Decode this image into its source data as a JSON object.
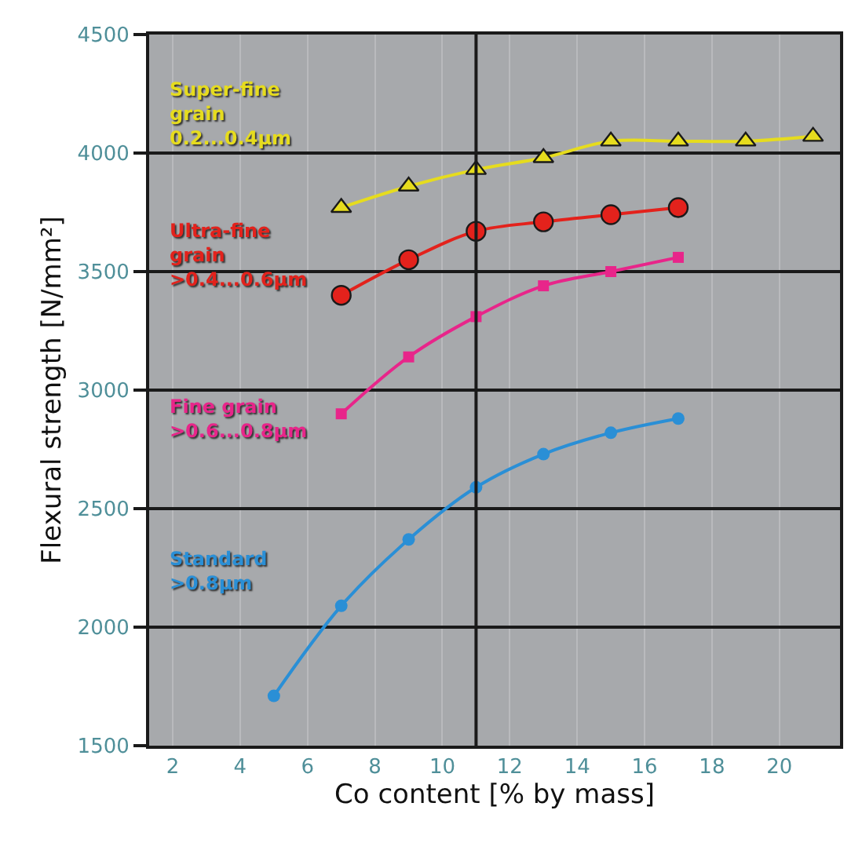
{
  "chart_data": {
    "type": "line",
    "xlabel": "Co content [% by mass]",
    "ylabel": "Flexural strength [N/mm²]",
    "xlim": [
      1.3,
      21.8
    ],
    "xticks": [
      2,
      4,
      6,
      8,
      10,
      12,
      14,
      16,
      18,
      20
    ],
    "ylim": [
      1500,
      4500
    ],
    "yticks": [
      1500,
      2000,
      2500,
      3000,
      3500,
      4000,
      4500
    ],
    "grid": true,
    "ref_lines": [
      {
        "axis": "x",
        "value": 11,
        "color": "#1a1a1a"
      }
    ],
    "series": [
      {
        "name": "Super-fine\ngrain\n0.2...0.4µm",
        "color": "#e6dc1e",
        "marker": "triangle",
        "x": [
          7,
          9,
          11,
          13,
          15,
          17,
          19,
          21
        ],
        "values": [
          3770,
          3860,
          3930,
          3980,
          4050,
          4050,
          4050,
          4070
        ]
      },
      {
        "name": "Ultra-fine\ngrain\n>0.4...0.6µm",
        "color": "#e3221c",
        "marker": "circle",
        "x": [
          7,
          9,
          11,
          13,
          15,
          17
        ],
        "values": [
          3400,
          3550,
          3670,
          3710,
          3740,
          3770
        ]
      },
      {
        "name": "Fine grain\n>0.6...0.8µm",
        "color": "#e8258a",
        "marker": "square",
        "x": [
          7,
          9,
          11,
          13,
          15,
          17
        ],
        "values": [
          2900,
          3140,
          3310,
          3440,
          3500,
          3560
        ]
      },
      {
        "name": "Standard\n>0.8µm",
        "color": "#2a8fd6",
        "marker": "circle",
        "x": [
          5,
          7,
          9,
          11,
          13,
          15,
          17
        ],
        "values": [
          1710,
          2090,
          2370,
          2590,
          2730,
          2820,
          2880
        ]
      }
    ]
  }
}
